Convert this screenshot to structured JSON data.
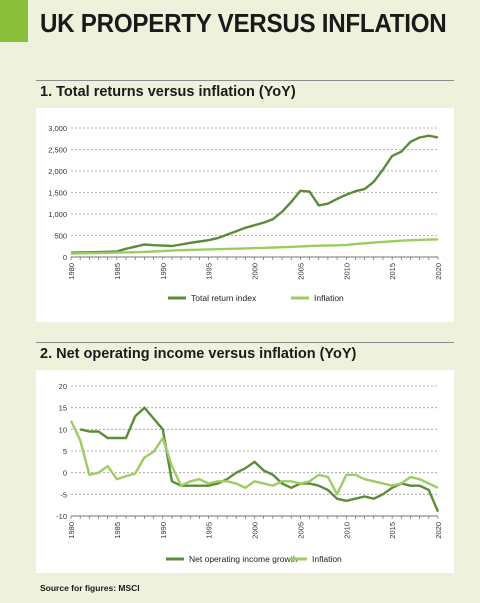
{
  "page": {
    "title": "UK PROPERTY VERSUS INFLATION",
    "source": "Source for figures: MSCI"
  },
  "colors": {
    "dark_green": "#5b8c3a",
    "light_green": "#9dcc63",
    "accent": "#8bbf3a",
    "background": "#eef2dc"
  },
  "chart_data": [
    {
      "type": "line",
      "title": "1. Total returns versus inflation (YoY)",
      "x": [
        1980,
        1981,
        1982,
        1983,
        1984,
        1985,
        1986,
        1987,
        1988,
        1989,
        1990,
        1991,
        1992,
        1993,
        1994,
        1995,
        1996,
        1997,
        1998,
        1999,
        2000,
        2001,
        2002,
        2003,
        2004,
        2005,
        2006,
        2007,
        2008,
        2009,
        2010,
        2011,
        2012,
        2013,
        2014,
        2015,
        2016,
        2017,
        2018,
        2019,
        2020
      ],
      "xticks": [
        "1980",
        "1985",
        "1990",
        "1995",
        "2000",
        "2005",
        "2010",
        "2015",
        "2020"
      ],
      "yticks": [
        "0",
        "500",
        "1,000",
        "1,500",
        "2,000",
        "2,500",
        "3,000"
      ],
      "ylim": [
        0,
        3000
      ],
      "grid": true,
      "legend_position": "bottom",
      "series": [
        {
          "name": "Total return index",
          "color": "#5b8c3a",
          "values": [
            100,
            105,
            110,
            115,
            120,
            130,
            190,
            240,
            290,
            275,
            265,
            255,
            290,
            330,
            360,
            390,
            440,
            520,
            600,
            680,
            740,
            800,
            880,
            1050,
            1280,
            1540,
            1520,
            1200,
            1240,
            1350,
            1450,
            1530,
            1580,
            1750,
            2030,
            2350,
            2450,
            2680,
            2780,
            2820,
            2780
          ]
        },
        {
          "name": "Inflation",
          "color": "#9dcc63",
          "values": [
            80,
            85,
            88,
            92,
            96,
            102,
            106,
            112,
            118,
            128,
            140,
            150,
            158,
            164,
            170,
            176,
            182,
            188,
            194,
            200,
            206,
            212,
            220,
            228,
            236,
            246,
            256,
            262,
            268,
            272,
            282,
            300,
            318,
            335,
            350,
            365,
            378,
            390,
            398,
            405,
            410
          ]
        }
      ]
    },
    {
      "type": "line",
      "title": "2.  Net operating income versus inflation (YoY)",
      "x": [
        1980,
        1981,
        1982,
        1983,
        1984,
        1985,
        1986,
        1987,
        1988,
        1989,
        1990,
        1991,
        1992,
        1993,
        1994,
        1995,
        1996,
        1997,
        1998,
        1999,
        2000,
        2001,
        2002,
        2003,
        2004,
        2005,
        2006,
        2007,
        2008,
        2009,
        2010,
        2011,
        2012,
        2013,
        2014,
        2015,
        2016,
        2017,
        2018,
        2019,
        2020
      ],
      "xticks": [
        "1980",
        "1985",
        "1990",
        "1995",
        "2000",
        "2005",
        "2010",
        "2015",
        "2020"
      ],
      "yticks": [
        "-10",
        "-5",
        "0",
        "5",
        "10",
        "15",
        "20"
      ],
      "ylim": [
        -10,
        20
      ],
      "grid": true,
      "legend_position": "bottom",
      "series": [
        {
          "name": "Net operating income growth",
          "color": "#5b8c3a",
          "values": [
            null,
            10,
            9.5,
            9.5,
            8,
            8,
            8,
            13,
            15,
            12.5,
            10,
            -2,
            -3,
            -3,
            -3,
            -3,
            -2.5,
            -1.5,
            0,
            1,
            2.5,
            0.5,
            -0.5,
            -2.5,
            -3.5,
            -2.5,
            -2.5,
            -3,
            -4,
            -6,
            -6.5,
            -6,
            -5.5,
            -6,
            -5,
            -3.5,
            -2.5,
            -3,
            -3,
            -4,
            -9
          ]
        },
        {
          "name": "Inflation",
          "color": "#9dcc63",
          "values": [
            12,
            7.5,
            -0.5,
            0,
            1.5,
            -1.5,
            -0.8,
            -0.2,
            3.5,
            4.8,
            8,
            1.5,
            -3,
            -2,
            -1.5,
            -2.5,
            -2,
            -2,
            -2.5,
            -3.5,
            -2,
            -2.5,
            -3,
            -2,
            -2,
            -2.5,
            -2,
            -0.5,
            -1,
            -5,
            -0.5,
            -0.5,
            -1.5,
            -2,
            -2.5,
            -3,
            -2.5,
            -1,
            -1.5,
            -2.5,
            -3.5
          ]
        }
      ]
    }
  ]
}
